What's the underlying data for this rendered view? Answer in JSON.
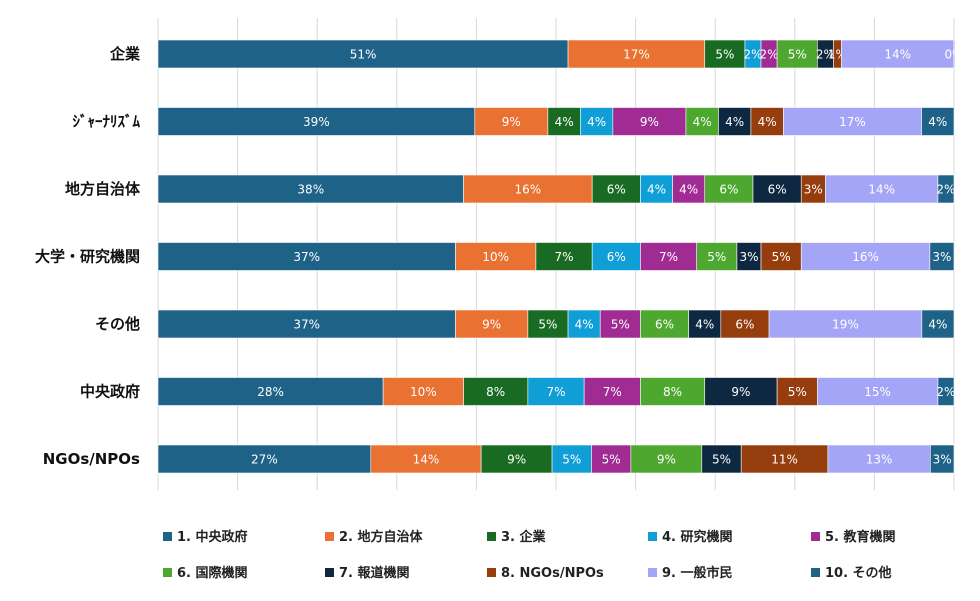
{
  "chart_data": {
    "type": "bar",
    "orientation": "horizontal",
    "stacked": "percent",
    "xlim": [
      0,
      100
    ],
    "grid": true,
    "legend_position": "bottom",
    "categories": [
      "企業",
      "ｼﾞｬｰﾅﾘｽﾞﾑ",
      "地方自治体",
      "大学・研究機関",
      "その他",
      "中央政府",
      "NGOs/NPOs"
    ],
    "series": [
      {
        "name": "1. 中央政府",
        "color": "#1f6287",
        "values": [
          51,
          39,
          38,
          37,
          37,
          28,
          27
        ]
      },
      {
        "name": "2. 地方自治体",
        "color": "#e97132",
        "values": [
          17,
          9,
          16,
          10,
          9,
          10,
          14
        ]
      },
      {
        "name": "3. 企業",
        "color": "#196b24",
        "values": [
          5,
          4,
          6,
          7,
          5,
          8,
          9
        ]
      },
      {
        "name": "4. 研究機関",
        "color": "#0f9ed5",
        "values": [
          2,
          4,
          4,
          6,
          4,
          7,
          5
        ]
      },
      {
        "name": "5. 教育機関",
        "color": "#a02b93",
        "values": [
          2,
          9,
          4,
          7,
          5,
          7,
          5
        ]
      },
      {
        "name": "6. 国際機関",
        "color": "#4ea72e",
        "values": [
          5,
          4,
          6,
          5,
          6,
          8,
          9
        ]
      },
      {
        "name": "7. 報道機関",
        "color": "#0e2841",
        "values": [
          2,
          4,
          6,
          3,
          4,
          9,
          5
        ]
      },
      {
        "name": "8. NGOs/NPOs",
        "color": "#953d0d",
        "values": [
          1,
          4,
          3,
          5,
          6,
          5,
          11
        ]
      },
      {
        "name": "9. 一般市民",
        "color": "#a5a5f7",
        "values": [
          14,
          17,
          14,
          16,
          19,
          15,
          13
        ]
      },
      {
        "name": "10. その他",
        "color": "#1f6287",
        "values": [
          0,
          4,
          2,
          3,
          4,
          2,
          3
        ]
      }
    ]
  }
}
